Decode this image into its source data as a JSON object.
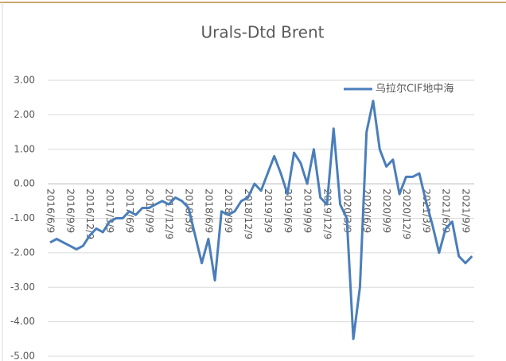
{
  "chart_data": {
    "type": "line",
    "title": "Urals-Dtd Brent",
    "categories": [
      "2016/6/9",
      null,
      null,
      "2016/9/9",
      null,
      null,
      "2016/12/9",
      null,
      null,
      "2017/3/9",
      null,
      null,
      "2017/6/9",
      null,
      null,
      "2017/9/9",
      null,
      null,
      "2017/12/9",
      null,
      null,
      "2018/3/9",
      null,
      null,
      "2018/6/9",
      null,
      null,
      "2018/9/9",
      null,
      null,
      "2018/12/9",
      null,
      null,
      "2019/3/9",
      null,
      null,
      "2019/6/9",
      null,
      null,
      "2019/9/9",
      null,
      null,
      "2019/12/9",
      null,
      null,
      "2020/3/9",
      null,
      null,
      "2020/6/9",
      null,
      null,
      "2020/9/9",
      null,
      null,
      "2020/12/9",
      null,
      null,
      "2021/3/9",
      null,
      null,
      "2021/6/9",
      null,
      null,
      "2021/9/9",
      null
    ],
    "series": [
      {
        "name": "乌拉尔CIF地中海",
        "color": "#4a7ebb",
        "values": [
          -1.7,
          -1.6,
          -1.7,
          -1.8,
          -1.9,
          -1.8,
          -1.5,
          -1.3,
          -1.4,
          -1.1,
          -1.0,
          -1.0,
          -0.8,
          -0.9,
          -0.7,
          -0.7,
          -0.6,
          -0.5,
          -0.6,
          -0.4,
          -0.5,
          -0.7,
          -1.5,
          -2.3,
          -1.6,
          -2.8,
          -0.8,
          -0.9,
          -0.8,
          -0.5,
          -0.4,
          0.0,
          -0.2,
          0.3,
          0.8,
          0.3,
          -0.3,
          0.9,
          0.6,
          0.0,
          1.0,
          -0.4,
          -0.6,
          1.6,
          -0.6,
          -1.0,
          -4.5,
          -3.0,
          1.5,
          2.4,
          1.0,
          0.5,
          0.7,
          -0.3,
          0.2,
          0.2,
          0.3,
          -0.5,
          -1.2,
          -2.0,
          -1.3,
          -1.1,
          -2.1,
          -2.3,
          -2.1
        ]
      }
    ],
    "ylim": [
      -5,
      3
    ],
    "yticks": [
      {
        "value": -5,
        "label": "-5.00"
      },
      {
        "value": -4,
        "label": "-4.00"
      },
      {
        "value": -3,
        "label": "-3.00"
      },
      {
        "value": -2,
        "label": "-2.00"
      },
      {
        "value": -1,
        "label": "-1.00"
      },
      {
        "value": 0,
        "label": "0.00"
      },
      {
        "value": 1,
        "label": "1.00"
      },
      {
        "value": 2,
        "label": "2.00"
      },
      {
        "value": 3,
        "label": "3.00"
      }
    ],
    "grid": true,
    "legend": "top-right"
  }
}
